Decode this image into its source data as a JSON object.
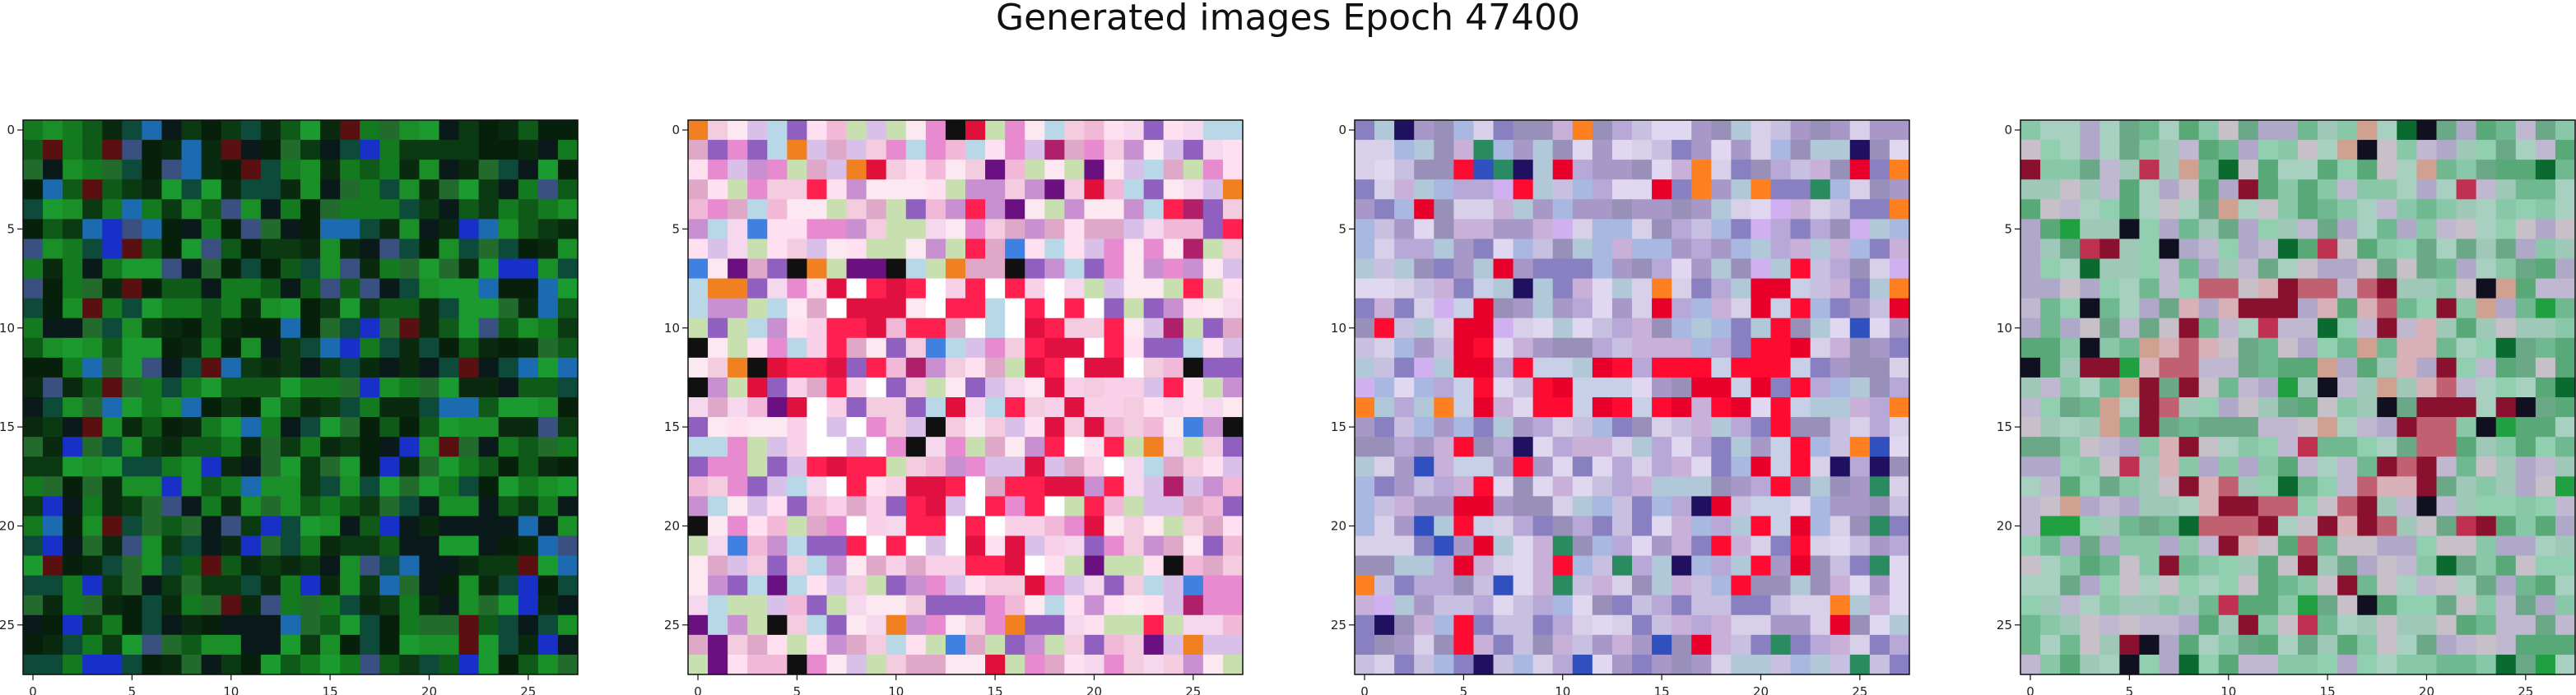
{
  "title": "Generated images Epoch 47400",
  "image_size": 28,
  "ticks": [
    0,
    5,
    10,
    15,
    20,
    25
  ],
  "panels": [
    {
      "name": "generated-image-1",
      "palette": [
        "#0b3a12",
        "#0f5a18",
        "#137a1f",
        "#1a8f28",
        "#0a2a0f",
        "#226b2c",
        "#0a1a1a",
        "#0d4a3a",
        "#1b9a30",
        "#06200b"
      ],
      "accent_colors": [
        "#1830c8",
        "#1c6ab0",
        "#5a1010",
        "#3a5080"
      ],
      "center_colors": []
    },
    {
      "name": "generated-image-2",
      "palette": [
        "#f2b8d8",
        "#e88ad0",
        "#f6d8ee",
        "#d8c0e8",
        "#ffe0f0",
        "#c890d0",
        "#f4cce0",
        "#b8d8e8",
        "#e0a8c8",
        "#fce8f0",
        "#9060c0",
        "#c8e0b0"
      ],
      "accent_colors": [
        "#e0103a",
        "#ff2050",
        "#b0206a",
        "#6a1080",
        "#101010",
        "#f08020",
        "#4080e0"
      ],
      "center_colors": [
        "#ff2050",
        "#ffffff",
        "#f8d0e8",
        "#e01040"
      ]
    },
    {
      "name": "generated-image-3",
      "palette": [
        "#b8a8d8",
        "#c8c0e0",
        "#d8d0e8",
        "#a898c8",
        "#8880c0",
        "#e0d8f0",
        "#b0c8d8",
        "#9890b8",
        "#c8b0d8",
        "#a8b8e0"
      ],
      "accent_colors": [
        "#ff0a30",
        "#e8002a",
        "#201060",
        "#3050c0",
        "#2a8a60",
        "#ff8020",
        "#d0b0f0"
      ],
      "center_colors": [
        "#ff0a30",
        "#e8002a",
        "#c8d0e8"
      ]
    },
    {
      "name": "generated-image-4",
      "palette": [
        "#88c8a8",
        "#a0c8b8",
        "#70b890",
        "#c0b8d0",
        "#b0a8c8",
        "#90d0b0",
        "#58a878",
        "#c8c0c8",
        "#a8d0c0",
        "#6aa888"
      ],
      "accent_colors": [
        "#8a1030",
        "#c03050",
        "#101020",
        "#20a040",
        "#0a6a30",
        "#d0a090"
      ],
      "center_colors": [
        "#c06070",
        "#8a1030",
        "#d8b0b8"
      ]
    }
  ]
}
